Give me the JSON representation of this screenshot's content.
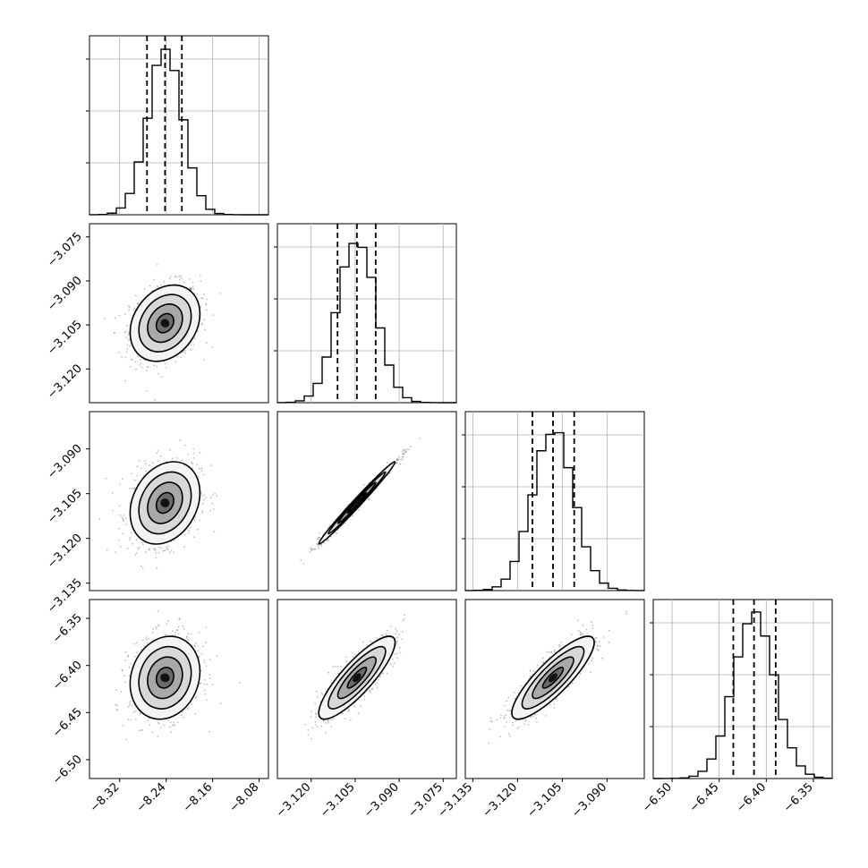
{
  "chart_data": {
    "type": "corner",
    "description_free": true,
    "parameters": [
      {
        "index": 0,
        "range": [
          -8.372,
          -8.064
        ],
        "ticks": [
          "−8.32",
          "−8.24",
          "−8.16",
          "−8.08"
        ],
        "tick_values": [
          -8.32,
          -8.24,
          -8.16,
          -8.08
        ],
        "quantiles": [
          -8.273,
          -8.242,
          -8.213
        ],
        "center": -8.242,
        "sigma": 0.03
      },
      {
        "index": 1,
        "range": [
          -3.1315,
          -3.0705
        ],
        "ticks": [
          "−3.120",
          "−3.105",
          "−3.090",
          "−3.075"
        ],
        "tick_values": [
          -3.12,
          -3.105,
          -3.09,
          -3.075
        ],
        "quantiles": [
          -3.111,
          -3.1044,
          -3.098
        ],
        "center": -3.1044,
        "sigma": 0.0065
      },
      {
        "index": 2,
        "range": [
          -3.1375,
          -3.0775
        ],
        "ticks": [
          "−3.135",
          "−3.120",
          "−3.105",
          "−3.090"
        ],
        "tick_values": [
          -3.135,
          -3.12,
          -3.105,
          -3.09
        ],
        "quantiles": [
          -3.115,
          -3.1081,
          -3.101
        ],
        "center": -3.1081,
        "sigma": 0.0069
      },
      {
        "index": 3,
        "range": [
          -6.52,
          -6.33
        ],
        "ticks": [
          "−6.50",
          "−6.45",
          "−6.40",
          "−6.35"
        ],
        "tick_values": [
          -6.5,
          -6.45,
          -6.4,
          -6.35
        ],
        "quantiles": [
          -6.435,
          -6.413,
          -6.39
        ],
        "center": -6.413,
        "sigma": 0.022
      }
    ],
    "correlations": {
      "1-0": 0.25,
      "2-0": 0.25,
      "2-1": 0.99,
      "3-0": 0.15,
      "3-1": 0.85,
      "3-2": 0.85
    },
    "histogram_color": "#000000",
    "quantile_style": "dashed",
    "grid": true,
    "contour_levels": [
      0.5,
      1.0,
      1.5,
      2.0
    ]
  }
}
